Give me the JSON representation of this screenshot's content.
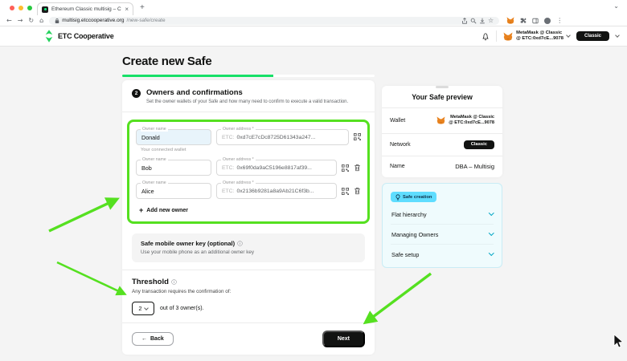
{
  "browser": {
    "tab_title": "Ethereum Classic multisig – C…",
    "url_host": "multisig.etccooperative.org",
    "url_path": "/new-safe/create"
  },
  "icons": {
    "close": "×",
    "plus": "+",
    "back": "←",
    "forward": "→",
    "reload": "↻",
    "home": "⌂",
    "star": "☆",
    "kebab": "⋮"
  },
  "app_header": {
    "brand": "ETC Cooperative",
    "wallet_line1": "MetaMask @ Classic",
    "wallet_line2": "@ ETC:0xd7cE...9078",
    "network_pill": "Classic"
  },
  "page": {
    "title": "Create new Safe",
    "progress_percent": 60
  },
  "step": {
    "number": "2",
    "title": "Owners and confirmations",
    "subtitle": "Set the owner wallets of your Safe and how many need to confirm to execute a valid transaction."
  },
  "owners": {
    "name_label": "Owner name",
    "address_label": "Owner address *",
    "address_prefix": "ETC:",
    "rows": [
      {
        "name": "Donald",
        "address": "0xd7cE7cDc8725D61343a247...",
        "helper": "Your connected wallet"
      },
      {
        "name": "Bob",
        "address": "0x69f0da9aC5196e8817af39...",
        "helper": ""
      },
      {
        "name": "Alice",
        "address": "0x2136b9281a8a9Ab21C6f3b...",
        "helper": ""
      }
    ],
    "add_owner_label": "Add new owner"
  },
  "mobile_key": {
    "title": "Safe mobile owner key (optional)",
    "subtitle": "Use your mobile phone as an additional owner key"
  },
  "threshold": {
    "title": "Threshold",
    "subtitle": "Any transaction requires the confirmation of:",
    "value": "2",
    "suffix": "out of 3 owner(s)."
  },
  "footer": {
    "back_label": "Back",
    "next_label": "Next"
  },
  "preview": {
    "title": "Your Safe preview",
    "wallet_label": "Wallet",
    "wallet_line1": "MetaMask @ Classic",
    "wallet_line2": "@ ETC:0xd7cE...9078",
    "network_label": "Network",
    "network_value": "Classic",
    "name_label": "Name",
    "name_value": "DBA – Multisig"
  },
  "tips": {
    "tag": "Safe creation",
    "items": [
      "Flat hierarchy",
      "Managing Owners",
      "Safe setup"
    ]
  },
  "colors": {
    "brand_green": "#17e068",
    "annotation_green": "#55e020",
    "button_black": "#121312",
    "tip_cyan": "#5fddff",
    "tip_bg": "#effbfd"
  }
}
